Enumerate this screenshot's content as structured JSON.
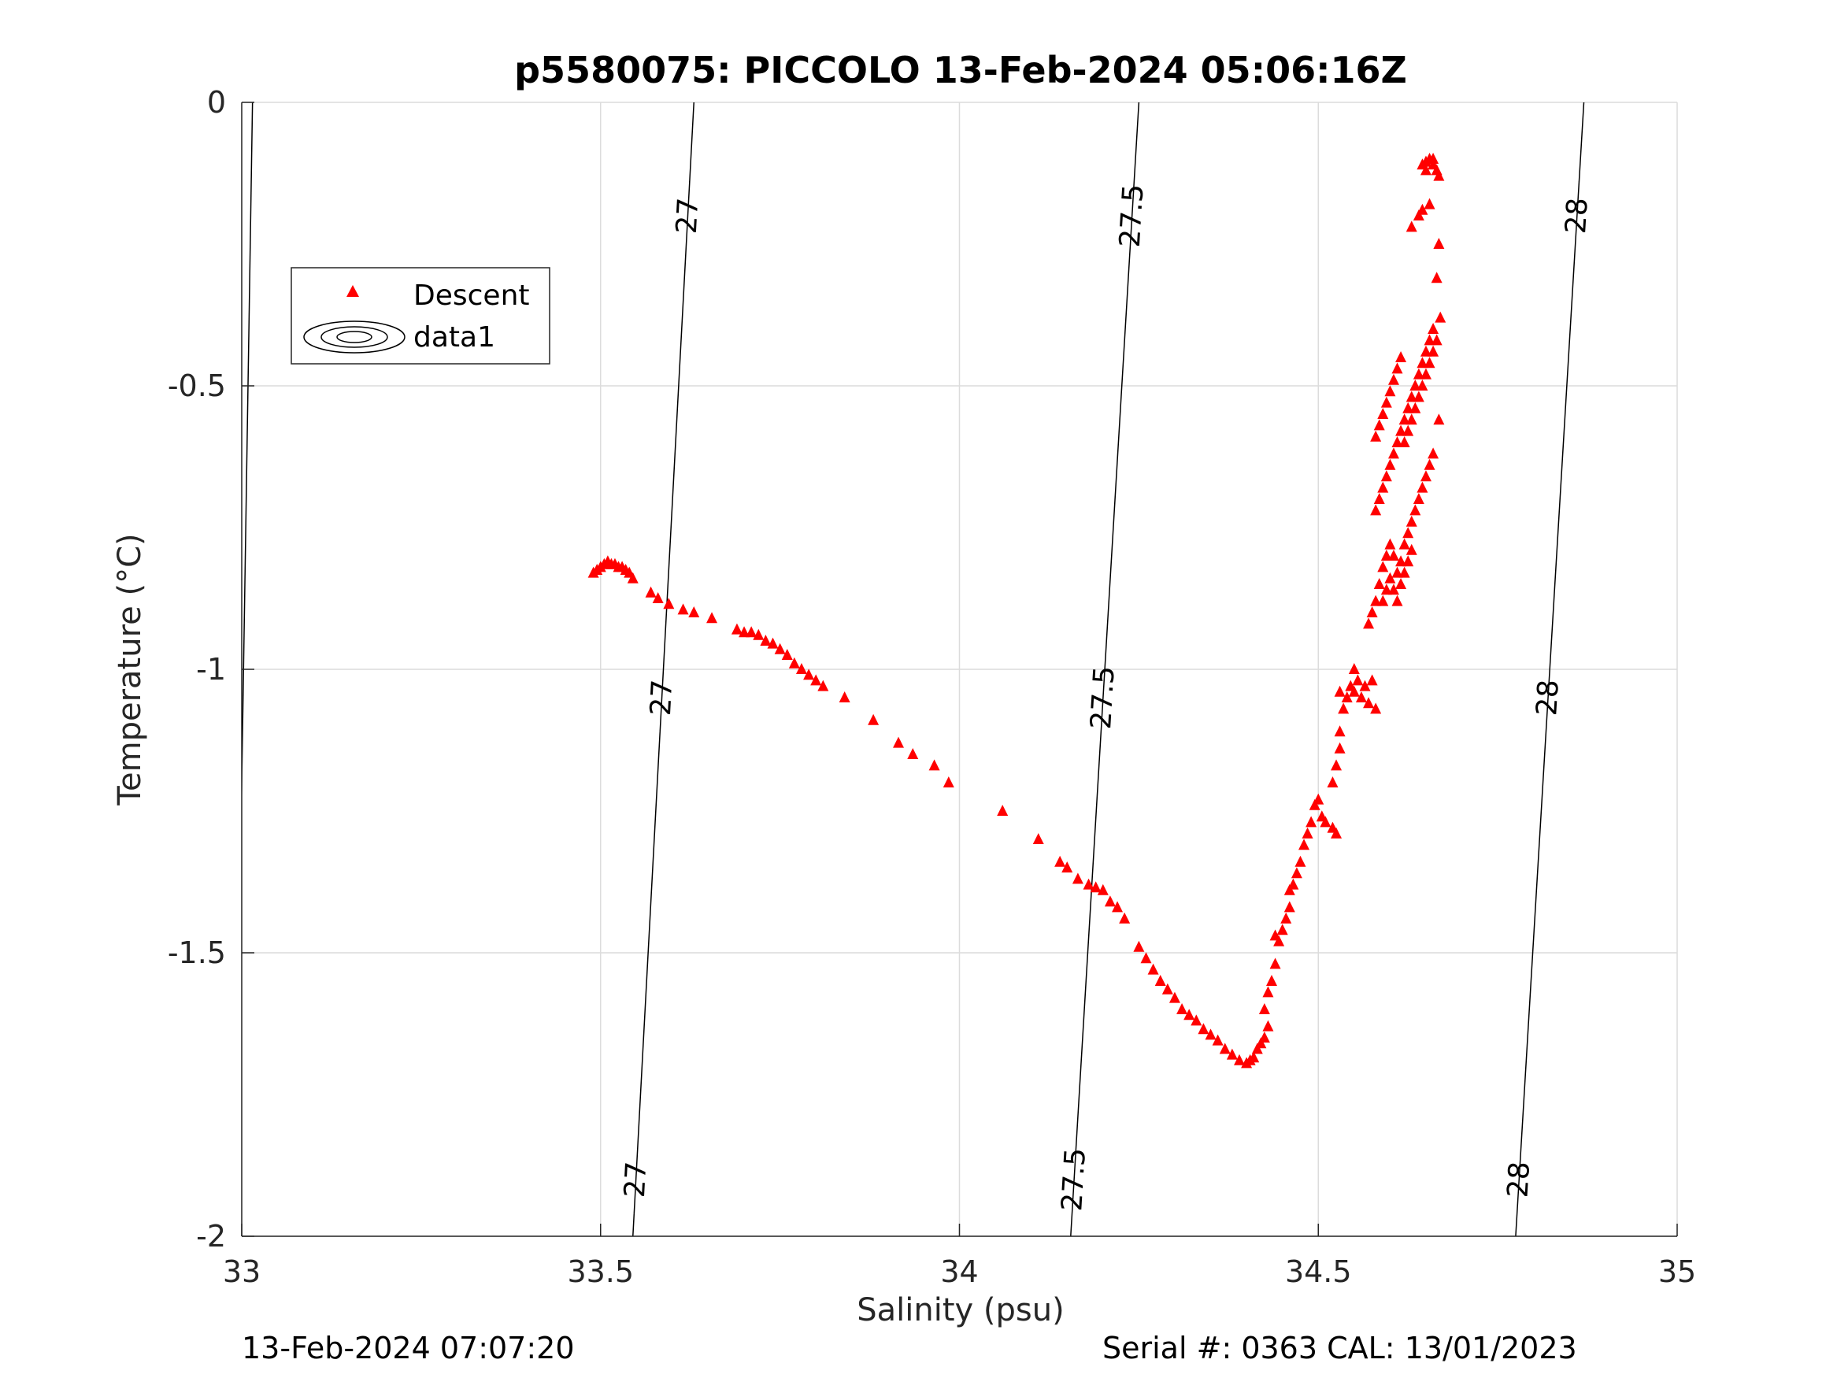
{
  "chart_data": {
    "type": "scatter",
    "title": "p5580075: PICCOLO 13-Feb-2024 05:06:16Z",
    "xlabel": "Salinity (psu)",
    "ylabel": "Temperature (°C)",
    "xlim": [
      33,
      35
    ],
    "ylim": [
      -2,
      0
    ],
    "xticks": [
      "33",
      "33.5",
      "34",
      "34.5",
      "35"
    ],
    "yticks": [
      "0",
      "-0.5",
      "-1",
      "-1.5",
      "-2"
    ],
    "grid": true,
    "legend": {
      "placement": "top-left",
      "entries": [
        "Descent",
        "data1"
      ]
    },
    "series": [
      {
        "name": "Descent",
        "color": "#ff0000",
        "marker": "triangle",
        "points": [
          [
            33.49,
            -0.83
          ],
          [
            33.495,
            -0.825
          ],
          [
            33.5,
            -0.82
          ],
          [
            33.505,
            -0.815
          ],
          [
            33.51,
            -0.81
          ],
          [
            33.515,
            -0.815
          ],
          [
            33.52,
            -0.815
          ],
          [
            33.525,
            -0.82
          ],
          [
            33.53,
            -0.82
          ],
          [
            33.535,
            -0.825
          ],
          [
            33.54,
            -0.83
          ],
          [
            33.545,
            -0.84
          ],
          [
            33.57,
            -0.865
          ],
          [
            33.58,
            -0.875
          ],
          [
            33.595,
            -0.885
          ],
          [
            33.615,
            -0.895
          ],
          [
            33.63,
            -0.9
          ],
          [
            33.655,
            -0.91
          ],
          [
            33.69,
            -0.93
          ],
          [
            33.7,
            -0.935
          ],
          [
            33.71,
            -0.935
          ],
          [
            33.72,
            -0.94
          ],
          [
            33.73,
            -0.95
          ],
          [
            33.74,
            -0.955
          ],
          [
            33.75,
            -0.965
          ],
          [
            33.76,
            -0.975
          ],
          [
            33.77,
            -0.99
          ],
          [
            33.78,
            -1.0
          ],
          [
            33.79,
            -1.01
          ],
          [
            33.8,
            -1.02
          ],
          [
            33.81,
            -1.03
          ],
          [
            33.84,
            -1.05
          ],
          [
            33.88,
            -1.09
          ],
          [
            33.915,
            -1.13
          ],
          [
            33.935,
            -1.15
          ],
          [
            33.965,
            -1.17
          ],
          [
            33.985,
            -1.2
          ],
          [
            34.06,
            -1.25
          ],
          [
            34.11,
            -1.3
          ],
          [
            34.14,
            -1.34
          ],
          [
            34.15,
            -1.35
          ],
          [
            34.165,
            -1.37
          ],
          [
            34.18,
            -1.38
          ],
          [
            34.19,
            -1.385
          ],
          [
            34.2,
            -1.39
          ],
          [
            34.21,
            -1.41
          ],
          [
            34.22,
            -1.42
          ],
          [
            34.23,
            -1.44
          ],
          [
            34.25,
            -1.49
          ],
          [
            34.26,
            -1.51
          ],
          [
            34.27,
            -1.53
          ],
          [
            34.28,
            -1.55
          ],
          [
            34.29,
            -1.565
          ],
          [
            34.3,
            -1.58
          ],
          [
            34.31,
            -1.6
          ],
          [
            34.32,
            -1.61
          ],
          [
            34.33,
            -1.62
          ],
          [
            34.34,
            -1.635
          ],
          [
            34.35,
            -1.645
          ],
          [
            34.36,
            -1.655
          ],
          [
            34.37,
            -1.67
          ],
          [
            34.38,
            -1.68
          ],
          [
            34.39,
            -1.69
          ],
          [
            34.4,
            -1.695
          ],
          [
            34.405,
            -1.69
          ],
          [
            34.41,
            -1.685
          ],
          [
            34.415,
            -1.67
          ],
          [
            34.42,
            -1.66
          ],
          [
            34.425,
            -1.65
          ],
          [
            34.43,
            -1.63
          ],
          [
            34.425,
            -1.6
          ],
          [
            34.43,
            -1.57
          ],
          [
            34.435,
            -1.55
          ],
          [
            34.44,
            -1.52
          ],
          [
            34.44,
            -1.47
          ],
          [
            34.445,
            -1.48
          ],
          [
            34.45,
            -1.46
          ],
          [
            34.455,
            -1.44
          ],
          [
            34.46,
            -1.42
          ],
          [
            34.46,
            -1.39
          ],
          [
            34.465,
            -1.38
          ],
          [
            34.47,
            -1.36
          ],
          [
            34.475,
            -1.34
          ],
          [
            34.48,
            -1.31
          ],
          [
            34.485,
            -1.29
          ],
          [
            34.49,
            -1.27
          ],
          [
            34.495,
            -1.24
          ],
          [
            34.5,
            -1.23
          ],
          [
            34.505,
            -1.26
          ],
          [
            34.51,
            -1.27
          ],
          [
            34.52,
            -1.28
          ],
          [
            34.525,
            -1.29
          ],
          [
            34.52,
            -1.2
          ],
          [
            34.525,
            -1.17
          ],
          [
            34.53,
            -1.14
          ],
          [
            34.53,
            -1.11
          ],
          [
            34.535,
            -1.07
          ],
          [
            34.54,
            -1.05
          ],
          [
            34.545,
            -1.03
          ],
          [
            34.55,
            -1.04
          ],
          [
            34.555,
            -1.02
          ],
          [
            34.56,
            -1.05
          ],
          [
            34.565,
            -1.03
          ],
          [
            34.57,
            -1.06
          ],
          [
            34.575,
            -1.02
          ],
          [
            34.58,
            -1.07
          ],
          [
            34.55,
            -1.0
          ],
          [
            34.53,
            -1.04
          ],
          [
            34.57,
            -0.92
          ],
          [
            34.575,
            -0.9
          ],
          [
            34.58,
            -0.88
          ],
          [
            34.585,
            -0.85
          ],
          [
            34.59,
            -0.82
          ],
          [
            34.595,
            -0.8
          ],
          [
            34.6,
            -0.78
          ],
          [
            34.605,
            -0.8
          ],
          [
            34.61,
            -0.83
          ],
          [
            34.615,
            -0.81
          ],
          [
            34.62,
            -0.78
          ],
          [
            34.625,
            -0.76
          ],
          [
            34.63,
            -0.74
          ],
          [
            34.635,
            -0.72
          ],
          [
            34.64,
            -0.7
          ],
          [
            34.645,
            -0.68
          ],
          [
            34.65,
            -0.66
          ],
          [
            34.655,
            -0.64
          ],
          [
            34.66,
            -0.62
          ],
          [
            34.58,
            -0.72
          ],
          [
            34.585,
            -0.7
          ],
          [
            34.59,
            -0.68
          ],
          [
            34.595,
            -0.66
          ],
          [
            34.6,
            -0.64
          ],
          [
            34.605,
            -0.62
          ],
          [
            34.61,
            -0.6
          ],
          [
            34.615,
            -0.58
          ],
          [
            34.62,
            -0.56
          ],
          [
            34.625,
            -0.54
          ],
          [
            34.63,
            -0.52
          ],
          [
            34.635,
            -0.5
          ],
          [
            34.64,
            -0.48
          ],
          [
            34.645,
            -0.46
          ],
          [
            34.65,
            -0.44
          ],
          [
            34.655,
            -0.42
          ],
          [
            34.66,
            -0.4
          ],
          [
            34.58,
            -0.59
          ],
          [
            34.585,
            -0.57
          ],
          [
            34.59,
            -0.55
          ],
          [
            34.595,
            -0.53
          ],
          [
            34.6,
            -0.51
          ],
          [
            34.605,
            -0.49
          ],
          [
            34.61,
            -0.47
          ],
          [
            34.615,
            -0.45
          ],
          [
            34.62,
            -0.6
          ],
          [
            34.625,
            -0.58
          ],
          [
            34.63,
            -0.56
          ],
          [
            34.635,
            -0.54
          ],
          [
            34.64,
            -0.52
          ],
          [
            34.645,
            -0.5
          ],
          [
            34.65,
            -0.48
          ],
          [
            34.655,
            -0.46
          ],
          [
            34.66,
            -0.44
          ],
          [
            34.665,
            -0.42
          ],
          [
            34.67,
            -0.38
          ],
          [
            34.668,
            -0.56
          ],
          [
            34.59,
            -0.88
          ],
          [
            34.595,
            -0.86
          ],
          [
            34.6,
            -0.84
          ],
          [
            34.605,
            -0.86
          ],
          [
            34.61,
            -0.88
          ],
          [
            34.615,
            -0.85
          ],
          [
            34.62,
            -0.83
          ],
          [
            34.625,
            -0.81
          ],
          [
            34.63,
            -0.79
          ],
          [
            34.63,
            -0.22
          ],
          [
            34.64,
            -0.2
          ],
          [
            34.645,
            -0.19
          ],
          [
            34.655,
            -0.18
          ],
          [
            34.665,
            -0.31
          ],
          [
            34.668,
            -0.25
          ],
          [
            34.645,
            -0.11
          ],
          [
            34.65,
            -0.105
          ],
          [
            34.655,
            -0.1
          ],
          [
            34.66,
            -0.11
          ],
          [
            34.665,
            -0.12
          ],
          [
            34.668,
            -0.13
          ],
          [
            34.65,
            -0.12
          ],
          [
            34.66,
            -0.1
          ]
        ]
      }
    ],
    "isopycnals": [
      {
        "label": "27",
        "s_at_t0": 33.63,
        "s_at_tm2": 33.545
      },
      {
        "label": "27.5",
        "s_at_t0": 34.25,
        "s_at_tm2": 34.155
      },
      {
        "label": "28",
        "s_at_t0": 34.87,
        "s_at_tm2": 34.775
      },
      {
        "label": "",
        "s_at_t0": 33.015,
        "s_at_tm2": 32.99
      }
    ]
  },
  "footer": {
    "left": "13-Feb-2024 07:07:20",
    "right": "Serial #: 0363  CAL: 13/01/2023"
  }
}
